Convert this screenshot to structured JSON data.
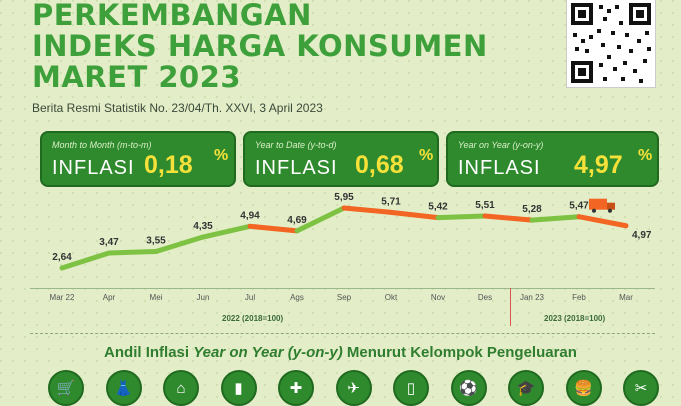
{
  "header": {
    "title": "PERKEMBANGAN\nINDEKS HARGA KONSUMEN\nMARET 2023",
    "subtitle": "Berita Resmi Statistik No. 23/04/Th. XXVI, 3 April 2023"
  },
  "cards": [
    {
      "caption": "Month to Month (m-to-m)",
      "label": "INFLASI",
      "value": "0,18",
      "unit": "%"
    },
    {
      "caption": "Year to Date (y-to-d)",
      "label": "INFLASI",
      "value": "0,68",
      "unit": "%"
    },
    {
      "caption": "Year on Year (y-on-y)",
      "label": "INFLASI",
      "value": "4,97",
      "unit": "%"
    }
  ],
  "chart_data": {
    "type": "line",
    "categories": [
      "Mar 22",
      "Apr",
      "Mei",
      "Jun",
      "Jul",
      "Ags",
      "Sep",
      "Okt",
      "Nov",
      "Des",
      "Jan 23",
      "Feb",
      "Mar"
    ],
    "values": [
      2.64,
      3.47,
      3.55,
      4.35,
      4.94,
      4.69,
      5.95,
      5.71,
      5.42,
      5.51,
      5.28,
      5.47,
      4.97
    ],
    "value_labels": [
      "2,64",
      "3,47",
      "3,55",
      "4,35",
      "4,94",
      "4,69",
      "5,95",
      "5,71",
      "5,42",
      "5,51",
      "5,28",
      "5,47",
      "4,97"
    ],
    "group_labels": [
      "2022 (2018=100)",
      "2023 (2018=100)"
    ],
    "colors": {
      "up": "#7dc242",
      "down": "#f26522"
    }
  },
  "section": {
    "title_prefix": "Andil Inflasi ",
    "title_italic": "Year on Year (y-on-y)",
    "title_suffix": " Menurut Kelompok Pengeluaran"
  },
  "icons": [
    "basket-icon",
    "clothing-icon",
    "house-icon",
    "appliance-icon",
    "health-icon",
    "airplane-icon",
    "phone-icon",
    "ball-icon",
    "graduation-cap-icon",
    "food-icon",
    "tools-icon"
  ],
  "icon_glyphs": [
    "🛒",
    "👗",
    "⌂",
    "▮",
    "✚",
    "✈",
    "▯",
    "⚽",
    "🎓",
    "🍔",
    "✂"
  ]
}
